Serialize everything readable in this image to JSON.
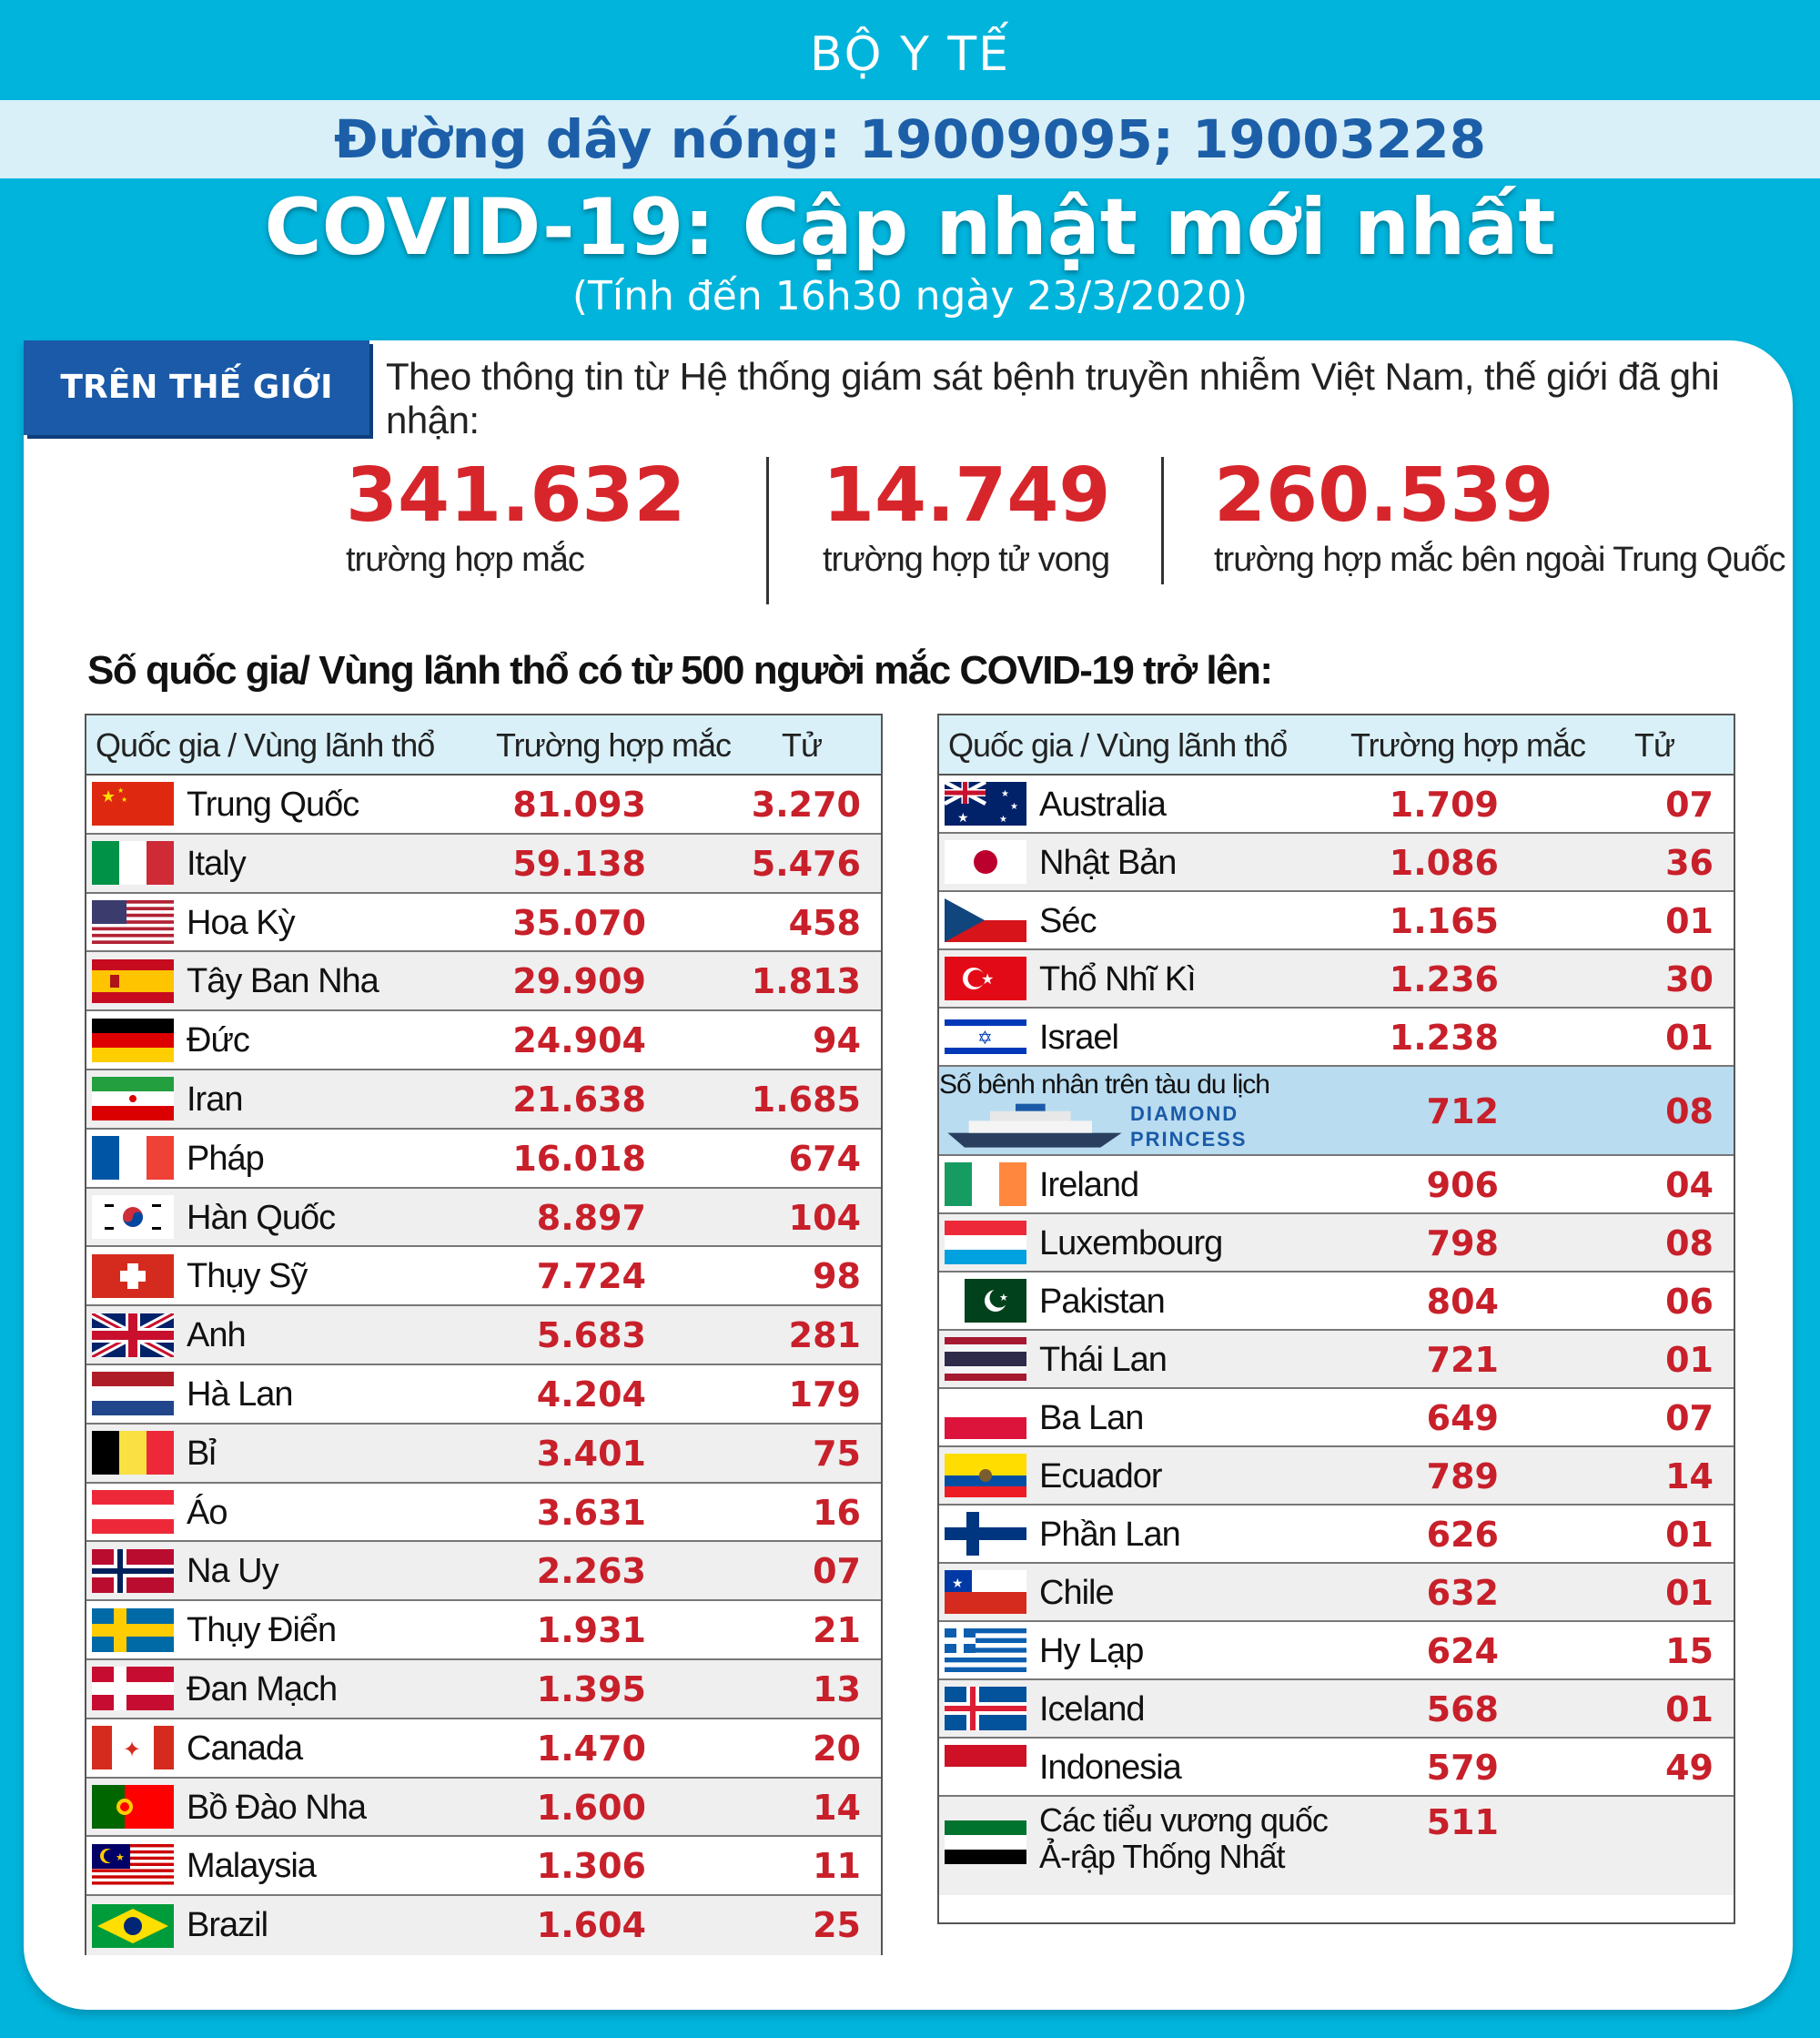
{
  "header": {
    "ministry": "BỘ Y TẾ",
    "hotline": "Đường dây nóng: 19009095; 19003228",
    "title": "COVID-19: Cập nhật mới nhất",
    "subtitle": "(Tính đến 16h30 ngày 23/3/2020)"
  },
  "world": {
    "tab": "TRÊN THẾ GIỚI",
    "intro": "Theo thông tin từ Hệ thống giám sát bệnh truyền nhiễm Việt Nam, thế giới đã ghi nhận:",
    "stats": [
      {
        "value": "341.632",
        "label": "trường hợp mắc"
      },
      {
        "value": "14.749",
        "label": "trường hợp tử vong"
      },
      {
        "value": "260.539",
        "label": "trường hợp  mắc bên ngoài Trung Quốc"
      }
    ]
  },
  "section_title": "Số quốc gia/ Vùng lãnh thổ có từ 500 người  mắc COVID-19 trở lên:",
  "left_table": {
    "headers": {
      "country": "Quốc gia / Vùng lãnh thổ",
      "cases": "Trường hợp mắc",
      "deaths": "Tử vong"
    },
    "rows": [
      {
        "name": "Trung Quốc",
        "cases": "81.093",
        "deaths": "3.270",
        "flag": "china-flag-icon"
      },
      {
        "name": "Italy",
        "cases": "59.138",
        "deaths": "5.476",
        "flag": "italy-flag-icon"
      },
      {
        "name": "Hoa Kỳ",
        "cases": "35.070",
        "deaths": "458",
        "flag": "usa-flag-icon"
      },
      {
        "name": "Tây Ban Nha",
        "cases": "29.909",
        "deaths": "1.813",
        "flag": "spain-flag-icon"
      },
      {
        "name": "Đức",
        "cases": "24.904",
        "deaths": "94",
        "flag": "germany-flag-icon"
      },
      {
        "name": "Iran",
        "cases": "21.638",
        "deaths": "1.685",
        "flag": "iran-flag-icon"
      },
      {
        "name": "Pháp",
        "cases": "16.018",
        "deaths": "674",
        "flag": "france-flag-icon"
      },
      {
        "name": "Hàn Quốc",
        "cases": "8.897",
        "deaths": "104",
        "flag": "south-korea-flag-icon"
      },
      {
        "name": "Thụy Sỹ",
        "cases": "7.724",
        "deaths": "98",
        "flag": "switzerland-flag-icon"
      },
      {
        "name": "Anh",
        "cases": "5.683",
        "deaths": "281",
        "flag": "uk-flag-icon"
      },
      {
        "name": "Hà Lan",
        "cases": "4.204",
        "deaths": "179",
        "flag": "netherlands-flag-icon"
      },
      {
        "name": "Bỉ",
        "cases": "3.401",
        "deaths": "75",
        "flag": "belgium-flag-icon"
      },
      {
        "name": "Áo",
        "cases": "3.631",
        "deaths": "16",
        "flag": "austria-flag-icon"
      },
      {
        "name": "Na Uy",
        "cases": "2.263",
        "deaths": "07",
        "flag": "norway-flag-icon"
      },
      {
        "name": "Thụy Điển",
        "cases": "1.931",
        "deaths": "21",
        "flag": "sweden-flag-icon"
      },
      {
        "name": "Đan Mạch",
        "cases": "1.395",
        "deaths": "13",
        "flag": "denmark-flag-icon"
      },
      {
        "name": "Canada",
        "cases": "1.470",
        "deaths": "20",
        "flag": "canada-flag-icon"
      },
      {
        "name": "Bồ Đào Nha",
        "cases": "1.600",
        "deaths": "14",
        "flag": "portugal-flag-icon"
      },
      {
        "name": "Malaysia",
        "cases": "1.306",
        "deaths": "11",
        "flag": "malaysia-flag-icon"
      },
      {
        "name": "Brazil",
        "cases": "1.604",
        "deaths": "25",
        "flag": "brazil-flag-icon"
      }
    ]
  },
  "right_table": {
    "headers": {
      "country": "Quốc gia / Vùng lãnh thổ",
      "cases": "Trường hợp mắc",
      "deaths": "Tử vong"
    },
    "rows": [
      {
        "name": "Australia",
        "cases": "1.709",
        "deaths": "07",
        "flag": "australia-flag-icon"
      },
      {
        "name": "Nhật Bản",
        "cases": "1.086",
        "deaths": "36",
        "flag": "japan-flag-icon"
      },
      {
        "name": "Séc",
        "cases": "1.165",
        "deaths": "01",
        "flag": "czech-flag-icon"
      },
      {
        "name": "Thổ Nhĩ Kì",
        "cases": "1.236",
        "deaths": "30",
        "flag": "turkey-flag-icon"
      },
      {
        "name": "Israel",
        "cases": "1.238",
        "deaths": "01",
        "flag": "israel-flag-icon"
      },
      {
        "name": "Số bệnh nhân trên tàu du lịch",
        "brand1": "DIAMOND",
        "brand2": "PRINCESS",
        "cases": "712",
        "deaths": "08",
        "flag": "cruise-ship-icon",
        "special": "ship"
      },
      {
        "name": "Ireland",
        "cases": "906",
        "deaths": "04",
        "flag": "ireland-flag-icon"
      },
      {
        "name": "Luxembourg",
        "cases": "798",
        "deaths": "08",
        "flag": "luxembourg-flag-icon"
      },
      {
        "name": "Pakistan",
        "cases": "804",
        "deaths": "06",
        "flag": "pakistan-flag-icon"
      },
      {
        "name": "Thái Lan",
        "cases": "721",
        "deaths": "01",
        "flag": "thailand-flag-icon"
      },
      {
        "name": "Ba Lan",
        "cases": "649",
        "deaths": "07",
        "flag": "poland-flag-icon"
      },
      {
        "name": "Ecuador",
        "cases": "789",
        "deaths": "14",
        "flag": "ecuador-flag-icon"
      },
      {
        "name": "Phần Lan",
        "cases": "626",
        "deaths": "01",
        "flag": "finland-flag-icon"
      },
      {
        "name": "Chile",
        "cases": "632",
        "deaths": "01",
        "flag": "chile-flag-icon"
      },
      {
        "name": "Hy Lạp",
        "cases": "624",
        "deaths": "15",
        "flag": "greece-flag-icon"
      },
      {
        "name": "Iceland",
        "cases": "568",
        "deaths": "01",
        "flag": "iceland-flag-icon"
      },
      {
        "name": "Indonesia",
        "cases": "579",
        "deaths": "49",
        "flag": "indonesia-flag-icon"
      },
      {
        "name": "Các tiểu vương quốc",
        "name2": "Ả-rập Thống Nhất",
        "cases": "511",
        "deaths": "",
        "flag": "uae-flag-icon",
        "special": "uae"
      }
    ]
  },
  "colors": {
    "background": "#00b4dc",
    "accent_red": "#d7262b",
    "tab_blue": "#1a5aa8",
    "header_band": "#d9f0f8"
  }
}
